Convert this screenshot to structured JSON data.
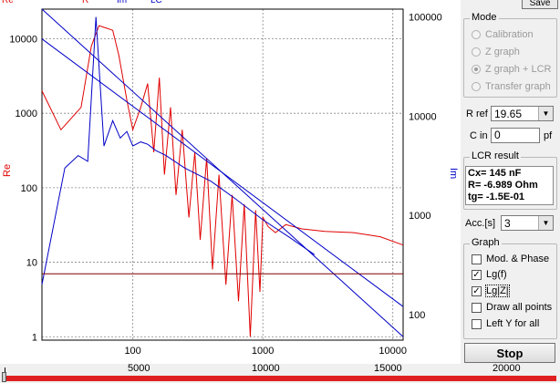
{
  "legend": {
    "re": "Re",
    "r": "R",
    "im": "Im",
    "lc": "LC"
  },
  "axes": {
    "left_label": "Re",
    "right_label": "Im",
    "left_ticks": [
      "10000",
      "1000",
      "100",
      "10",
      "1"
    ],
    "right_ticks": [
      "100000",
      "10000",
      "1000",
      "100"
    ],
    "bottom_ticks": [
      "100",
      "1000",
      "10000"
    ]
  },
  "colors": {
    "re": "#e00000",
    "im": "#0000c8",
    "line": "#800000",
    "axis": "#000000"
  },
  "right_panel": {
    "save_label": "Save",
    "mode": {
      "title": "Mode",
      "options": [
        "Calibration",
        "Z graph",
        "Z graph + LCR",
        "Transfer graph"
      ],
      "selected": "Z graph + LCR"
    },
    "r_ref": {
      "label": "R ref",
      "value": "19.65"
    },
    "c_in": {
      "label": "C in",
      "value": "0",
      "unit": "pf"
    },
    "lcr": {
      "title": "LCR result",
      "line1": "Cx= 145 nF",
      "line2": "R= -6.989 Ohm",
      "line3": "tg= -1.5E-01"
    },
    "acc": {
      "label": "Acc.[s]",
      "value": "3"
    },
    "graph": {
      "title": "Graph",
      "mod_phase": "Mod. & Phase",
      "lg_f": "Lg(f)",
      "lg_z": "Lg|Z|",
      "draw_all": "Draw all points",
      "left_y": "Left Y for all",
      "checked": {
        "mod_phase": false,
        "lg_f": true,
        "lg_z": true,
        "draw_all": false,
        "left_y": false
      }
    },
    "stop_label": "Stop"
  },
  "scrollbar": {
    "ticks": [
      "0",
      "5000",
      "10000",
      "15000",
      "20000"
    ]
  },
  "chart_data": {
    "type": "line",
    "xlabel": "",
    "ylabel": "Re",
    "y2label": "Im",
    "x_scale": "log",
    "y_scale": "log",
    "y2_scale": "log",
    "xlim": [
      20,
      12000
    ],
    "ylim": [
      0.9,
      25000
    ],
    "y2lim": [
      55,
      120000
    ],
    "x_ticks": [
      100,
      1000,
      10000
    ],
    "y_ticks": [
      1,
      10,
      100,
      1000,
      10000
    ],
    "y2_ticks": [
      100,
      1000,
      10000,
      100000
    ],
    "series": [
      {
        "name": "Re",
        "color": "#e00000",
        "axis": "left",
        "x": [
          20,
          28,
          40,
          48,
          55,
          62,
          70,
          78,
          90,
          100,
          115,
          130,
          145,
          160,
          175,
          195,
          215,
          240,
          270,
          300,
          330,
          370,
          410,
          460,
          520,
          580,
          650,
          720,
          800,
          880,
          950,
          1000,
          1100,
          1250,
          1500,
          2000,
          3000,
          5000,
          8000,
          12000
        ],
        "y": [
          2000,
          600,
          1200,
          8000,
          15000,
          14000,
          13000,
          6000,
          1500,
          600,
          1200,
          2500,
          300,
          3000,
          150,
          1200,
          80,
          600,
          40,
          300,
          20,
          250,
          8,
          150,
          5,
          80,
          3,
          60,
          1,
          50,
          4,
          40,
          30,
          25,
          32,
          28,
          26,
          25,
          22,
          17
        ]
      },
      {
        "name": "Im",
        "color": "#0000c8",
        "axis": "right",
        "x": [
          20,
          30,
          38,
          45,
          52,
          60,
          70,
          80,
          90,
          100,
          115,
          130,
          150,
          180,
          250,
          400,
          600,
          1000,
          1600,
          2500
        ],
        "y": [
          200,
          3000,
          4000,
          3500,
          100000,
          5000,
          9000,
          6000,
          7000,
          5000,
          5500,
          5200,
          4500,
          4000,
          3000,
          2200,
          1500,
          900,
          600,
          400
        ]
      },
      {
        "name": "Im fit",
        "color": "#0000c8",
        "axis": "right",
        "x": [
          20,
          12000
        ],
        "y": [
          60000,
          120
        ]
      },
      {
        "name": "Re fit",
        "color": "#0000c8",
        "axis": "left",
        "x": [
          20,
          12000
        ],
        "y": [
          25000,
          1
        ]
      },
      {
        "name": "R",
        "color": "#800000",
        "axis": "left",
        "x": [
          20,
          12000
        ],
        "y": [
          7,
          7
        ]
      }
    ]
  }
}
